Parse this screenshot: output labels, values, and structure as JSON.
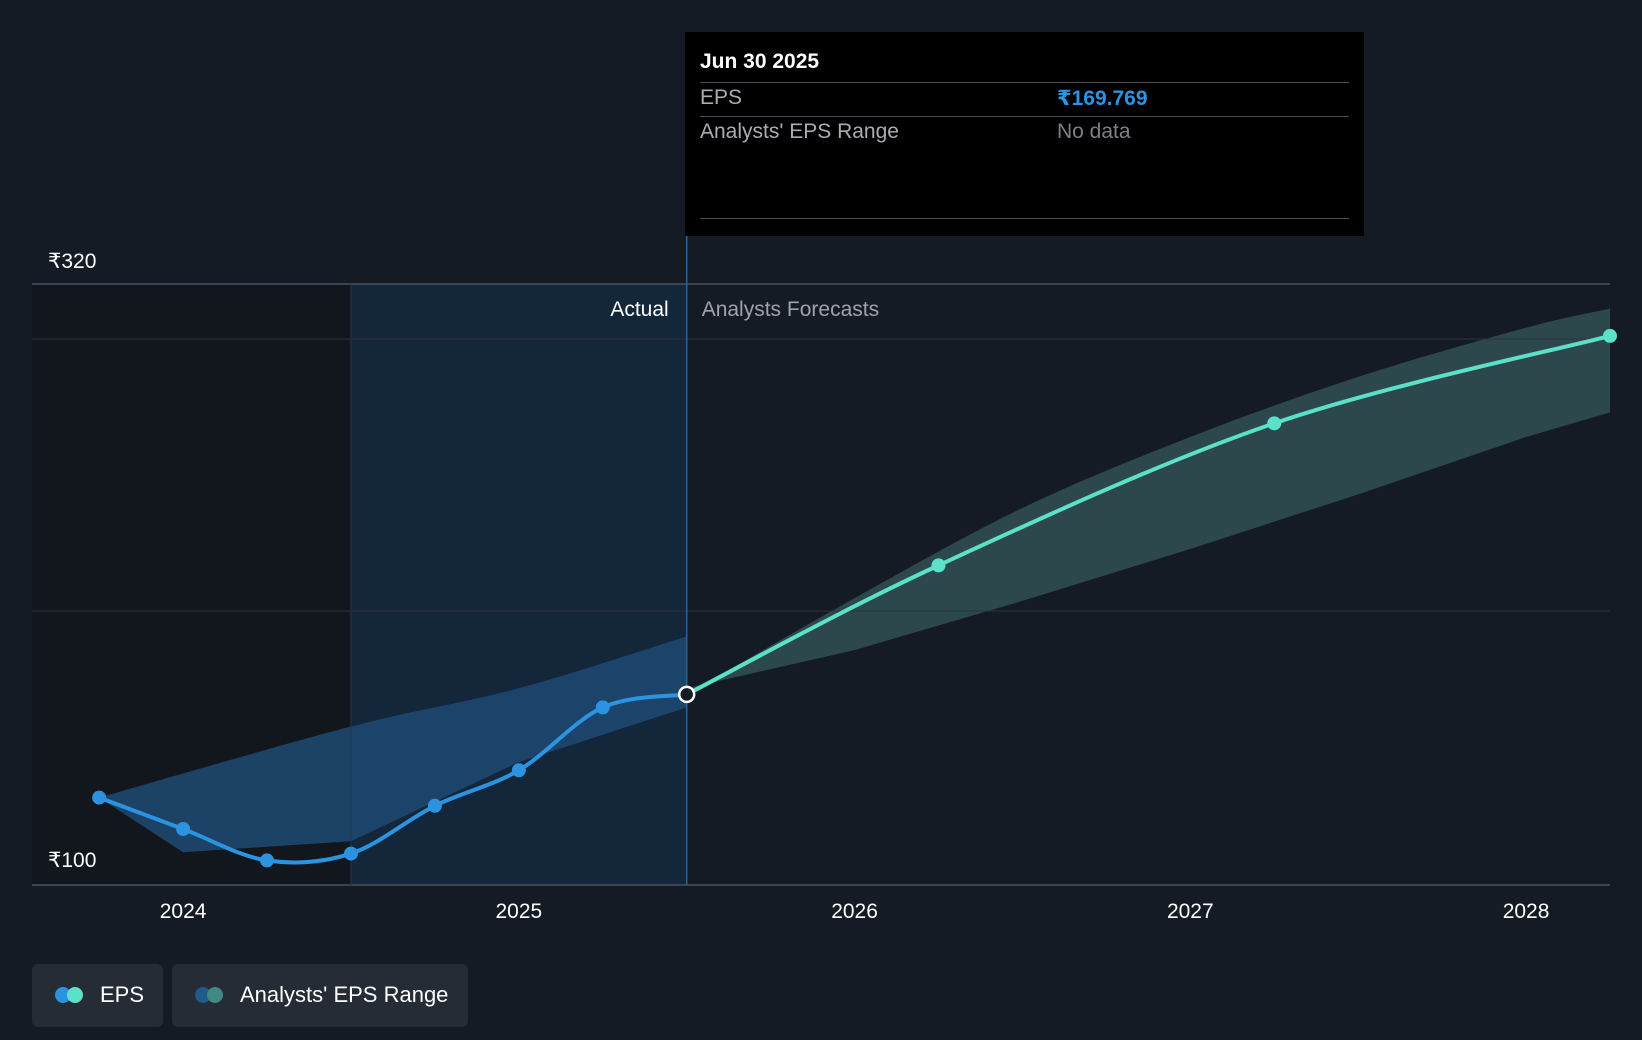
{
  "chart_data": {
    "type": "line",
    "title": "",
    "y_axis_labels": [
      "₹320",
      "₹100"
    ],
    "ylim": [
      100,
      320
    ],
    "x_ticks": [
      2024,
      2025,
      2026,
      2027,
      2028
    ],
    "xlim": [
      2023.55,
      2028.25
    ],
    "divider_x": 2025.5,
    "actual_shade_start": 2024.5,
    "actual_label": "Actual",
    "forecast_label": "Analysts Forecasts",
    "series": [
      {
        "name": "EPS (actual)",
        "color": "#2b93e0",
        "points": [
          [
            2023.75,
            132
          ],
          [
            2024.0,
            120.5
          ],
          [
            2024.25,
            109
          ],
          [
            2024.5,
            111.5
          ],
          [
            2024.75,
            129
          ],
          [
            2025.0,
            142
          ],
          [
            2025.25,
            165
          ],
          [
            2025.5,
            169.769
          ]
        ]
      },
      {
        "name": "EPS (forecast)",
        "color": "#5ce1c9",
        "points": [
          [
            2025.5,
            169.769
          ],
          [
            2026.25,
            217
          ],
          [
            2027.25,
            269
          ],
          [
            2028.25,
            301
          ]
        ]
      }
    ],
    "range_actual": {
      "upper": [
        [
          2023.75,
          132
        ],
        [
          2024.5,
          158
        ],
        [
          2025.0,
          172
        ],
        [
          2025.5,
          191
        ]
      ],
      "lower": [
        [
          2025.5,
          165
        ],
        [
          2025.0,
          145
        ],
        [
          2024.5,
          116
        ],
        [
          2024.0,
          112
        ],
        [
          2023.75,
          132
        ]
      ]
    },
    "range_forecast": {
      "upper": [
        [
          2025.5,
          169.769
        ],
        [
          2026.0,
          205
        ],
        [
          2026.5,
          238
        ],
        [
          2027.0,
          264
        ],
        [
          2027.5,
          286
        ],
        [
          2028.0,
          304
        ],
        [
          2028.25,
          311
        ]
      ],
      "lower": [
        [
          2028.25,
          273
        ],
        [
          2028.0,
          264
        ],
        [
          2027.5,
          243
        ],
        [
          2027.0,
          223
        ],
        [
          2026.5,
          204
        ],
        [
          2026.0,
          186
        ],
        [
          2025.5,
          172
        ]
      ]
    }
  },
  "tooltip": {
    "date": "Jun 30 2025",
    "eps_label": "EPS",
    "eps_value": "₹169.769",
    "range_label": "Analysts' EPS Range",
    "range_value": "No data"
  },
  "legend": {
    "eps_label": "EPS",
    "range_label": "Analysts' EPS Range"
  },
  "colors": {
    "background": "#151b24",
    "actual_line": "#2b93e0",
    "forecast_line": "#5ce1c9",
    "forecast_band": "#2d4b50",
    "actual_band": "#1e4a73"
  }
}
